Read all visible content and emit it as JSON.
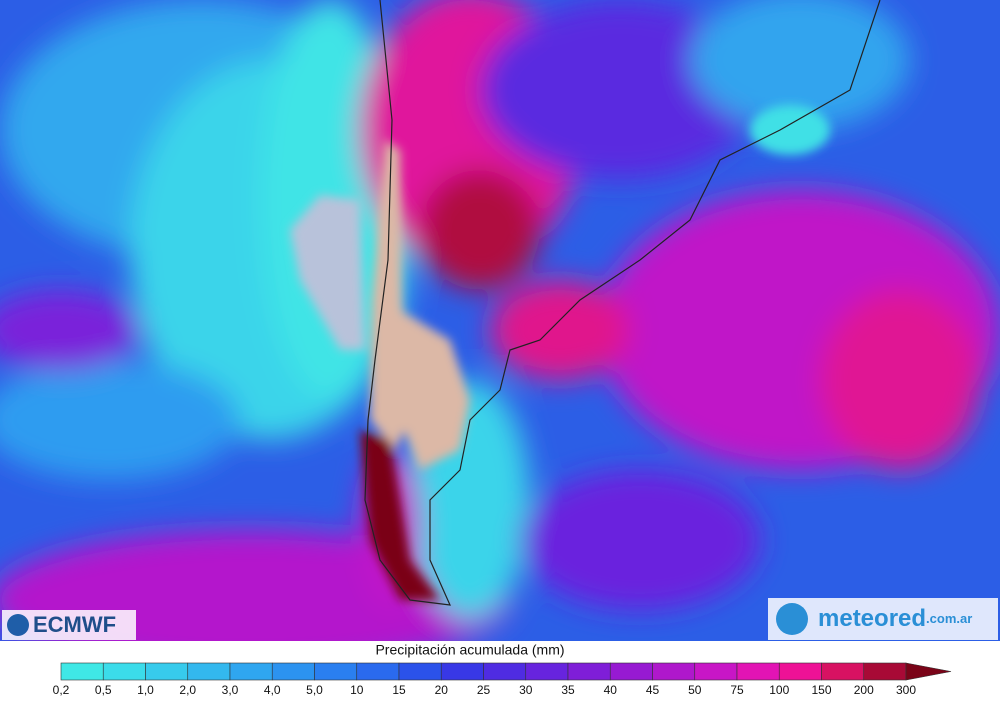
{
  "logo_left": "ECMWF",
  "logo_right": {
    "brand": "meteored",
    "suffix": ".com.ar"
  },
  "legend": {
    "title": "Precipitación acumulada (mm)",
    "ticks": [
      "0,2",
      "0,5",
      "1,0",
      "2,0",
      "3,0",
      "4,0",
      "5,0",
      "10",
      "15",
      "20",
      "25",
      "30",
      "35",
      "40",
      "45",
      "50",
      "75",
      "100",
      "150",
      "200",
      "300"
    ],
    "colors": [
      "#3fe8e6",
      "#3bdcea",
      "#37cbec",
      "#33b8ee",
      "#2fa6f0",
      "#2c93f0",
      "#2a7ff0",
      "#2a6aee",
      "#2b52ea",
      "#3838e6",
      "#4f2ce2",
      "#6724de",
      "#7f1ed8",
      "#971ad2",
      "#af18cc",
      "#c816c6",
      "#e214b4",
      "#ee1296",
      "#d81262",
      "#a80a36",
      "#7a0418"
    ]
  }
}
